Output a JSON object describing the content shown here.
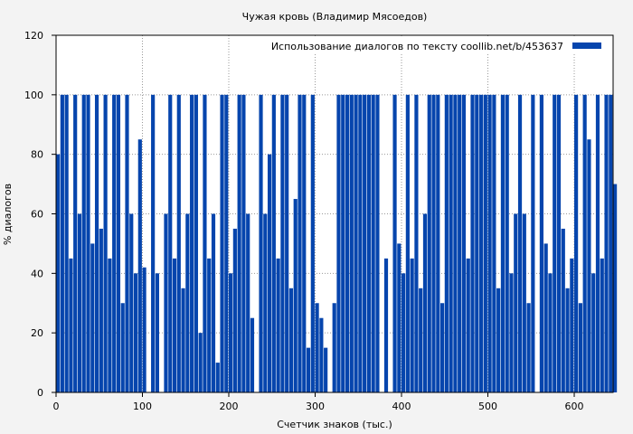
{
  "chart_data": {
    "type": "bar",
    "title": "Чужая кровь (Владимир Мясоедов)",
    "xlabel": "Счетчик знаков (тыс.)",
    "ylabel": "% диалогов",
    "xlim": [
      0,
      645
    ],
    "ylim": [
      0,
      120
    ],
    "xticks": [
      0,
      100,
      200,
      300,
      400,
      500,
      600
    ],
    "yticks": [
      0,
      20,
      40,
      60,
      80,
      100,
      120
    ],
    "grid": true,
    "legend": {
      "label": "Использование диалогов по тексту  coollib.net/b/453637",
      "placement": "top-right"
    },
    "bar_color": "#0645ad",
    "bin_width": 5,
    "x_start": 0,
    "values": [
      80,
      100,
      100,
      45,
      100,
      60,
      100,
      100,
      50,
      100,
      55,
      100,
      45,
      100,
      100,
      30,
      100,
      60,
      40,
      85,
      42,
      0,
      100,
      40,
      0,
      60,
      100,
      45,
      100,
      35,
      60,
      100,
      100,
      20,
      100,
      45,
      60,
      10,
      100,
      100,
      40,
      55,
      100,
      100,
      60,
      25,
      0,
      100,
      60,
      80,
      100,
      45,
      100,
      100,
      35,
      65,
      100,
      100,
      15,
      100,
      30,
      25,
      15,
      0,
      30,
      100,
      100,
      100,
      100,
      100,
      100,
      100,
      100,
      100,
      100,
      0,
      45,
      0,
      100,
      50,
      40,
      100,
      45,
      100,
      35,
      60,
      100,
      100,
      100,
      30,
      100,
      100,
      100,
      100,
      100,
      45,
      100,
      100,
      100,
      100,
      100,
      100,
      35,
      100,
      100,
      40,
      60,
      100,
      60,
      30,
      100,
      0,
      100,
      50,
      40,
      100,
      100,
      55,
      35,
      45,
      100,
      30,
      100,
      85,
      40,
      100,
      45,
      100,
      100,
      70
    ]
  }
}
